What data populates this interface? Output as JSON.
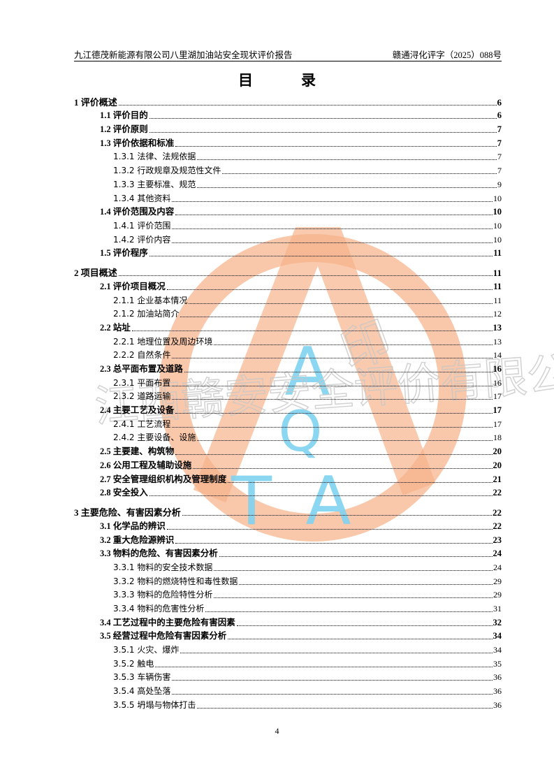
{
  "header": {
    "left": "九江德茂新能源有限公司八里湖加油站安全现状评价报告",
    "right": "赣通浔化评字（2025）088号"
  },
  "title": "目　录",
  "watermark": {
    "text": "江西赣安安全评价有限公司",
    "seal_char": "印",
    "letters": [
      "A",
      "Q",
      "T",
      "A"
    ],
    "ring_color": "#f7b48c",
    "letter_color": "#7fd3f0"
  },
  "sections": [
    {
      "entries": [
        {
          "level": 1,
          "label": "1 评价概述",
          "page": "6"
        },
        {
          "level": 2,
          "label": "1.1 评价目的",
          "page": "6"
        },
        {
          "level": 2,
          "label": "1.2 评价原则",
          "page": "7"
        },
        {
          "level": 2,
          "label": "1.3 评价依据和标准",
          "page": "7"
        },
        {
          "level": 3,
          "label": "1.3.1 法律、法规依据",
          "page": "7"
        },
        {
          "level": 3,
          "label": "1.3.2 行政规章及规范性文件",
          "page": "7"
        },
        {
          "level": 3,
          "label": "1.3.3 主要标准、规范",
          "page": "9"
        },
        {
          "level": 3,
          "label": "1.3.4 其他资料",
          "page": "10"
        },
        {
          "level": 2,
          "label": "1.4 评价范围及内容",
          "page": "10"
        },
        {
          "level": 3,
          "label": "1.4.1 评价范围",
          "page": "10"
        },
        {
          "level": 3,
          "label": "1.4.2 评价内容",
          "page": "10"
        },
        {
          "level": 2,
          "label": "1.5 评价程序",
          "page": "11"
        }
      ]
    },
    {
      "entries": [
        {
          "level": 1,
          "label": "2 项目概述",
          "page": "11"
        },
        {
          "level": 2,
          "label": "2.1 评价项目概况",
          "page": "11"
        },
        {
          "level": 3,
          "label": "2.1.1 企业基本情况",
          "page": "11"
        },
        {
          "level": 3,
          "label": "2.1.2 加油站简介",
          "page": "12"
        },
        {
          "level": 2,
          "label": "2.2 站址",
          "page": "13"
        },
        {
          "level": 3,
          "label": "2.2.1 地理位置及周边环境",
          "page": "13"
        },
        {
          "level": 3,
          "label": "2.2.2 自然条件",
          "page": "14"
        },
        {
          "level": 2,
          "label": "2.3 总平面布置及道路",
          "page": "16"
        },
        {
          "level": 3,
          "label": "2.3.1 平面布置",
          "page": "16"
        },
        {
          "level": 3,
          "label": "2.3.2 道路运输",
          "page": "17"
        },
        {
          "level": 2,
          "label": "2.4 主要工艺及设备",
          "page": "17"
        },
        {
          "level": 3,
          "label": "2.4.1 工艺流程",
          "page": "17"
        },
        {
          "level": 3,
          "label": "2.4.2 主要设备、设施",
          "page": "18"
        },
        {
          "level": 2,
          "label": "2.5 主要建、构筑物",
          "page": "20"
        },
        {
          "level": 2,
          "label": "2.6 公用工程及辅助设施",
          "page": "20"
        },
        {
          "level": 2,
          "label": "2.7 安全管理组织机构及管理制度",
          "page": "21"
        },
        {
          "level": 2,
          "label": "2.8 安全投入",
          "page": "22"
        }
      ]
    },
    {
      "entries": [
        {
          "level": 1,
          "label": "3 主要危险、有害因素分析",
          "page": "22"
        },
        {
          "level": 2,
          "label": "3.1 化学品的辨识",
          "page": "22"
        },
        {
          "level": 2,
          "label": "3.2 重大危险源辨识",
          "page": "23"
        },
        {
          "level": 2,
          "label": "3.3 物料的危险、有害因素分析",
          "page": "24"
        },
        {
          "level": 3,
          "label": "3.3.1 物料的安全技术数据",
          "page": "24"
        },
        {
          "level": 3,
          "label": "3.3.2 物料的燃烧特性和毒性数据",
          "page": "29"
        },
        {
          "level": 3,
          "label": "3.3.3 物料的危险特性分析",
          "page": "29"
        },
        {
          "level": 3,
          "label": "3.3.4 物料的危害性分析",
          "page": "31"
        },
        {
          "level": 2,
          "label": "3.4 工艺过程中的主要危险有害因素",
          "page": "32"
        },
        {
          "level": 2,
          "label": "3.5 经营过程中危险有害因素分析",
          "page": "34"
        },
        {
          "level": 3,
          "label": "3.5.1 火灾、爆炸",
          "page": "34"
        },
        {
          "level": 3,
          "label": "3.5.2 触电",
          "page": "35"
        },
        {
          "level": 3,
          "label": "3.5.3 车辆伤害",
          "page": "36"
        },
        {
          "level": 3,
          "label": "3.5.4 高处坠落",
          "page": "36"
        },
        {
          "level": 3,
          "label": "3.5.5 坍塌与物体打击",
          "page": "36"
        }
      ]
    }
  ],
  "footer": {
    "page_number": "4"
  }
}
